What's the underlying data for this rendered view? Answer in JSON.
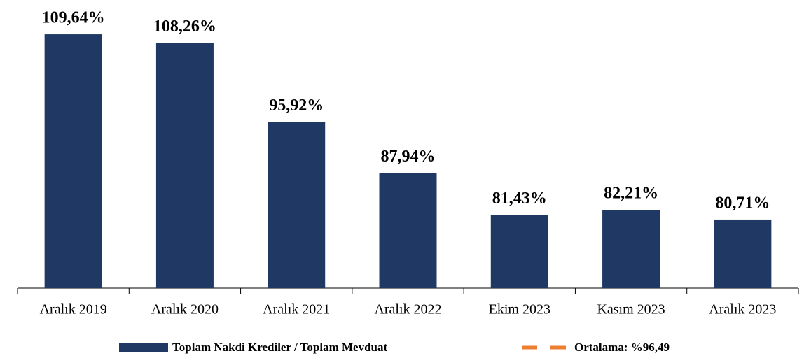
{
  "chart_data": {
    "type": "bar",
    "categories": [
      "Aralık 2019",
      "Aralık 2020",
      "Aralık 2021",
      "Aralık 2022",
      "Ekim 2023",
      "Kasım 2023",
      "Aralık 2023"
    ],
    "series": [
      {
        "name": "Toplam Nakdi Krediler / Toplam Mevduat",
        "color": "#1f3864",
        "values": [
          109.64,
          108.26,
          95.92,
          87.94,
          81.43,
          82.21,
          80.71
        ],
        "value_labels": [
          "109,64%",
          "108,26%",
          "95,92%",
          "87,94%",
          "81,43%",
          "82,21%",
          "80,71%"
        ]
      }
    ],
    "average": {
      "name": "Ortalama: %96,49",
      "value": 96.49,
      "color": "#ed7d31"
    },
    "ylim": [
      70,
      115
    ]
  }
}
